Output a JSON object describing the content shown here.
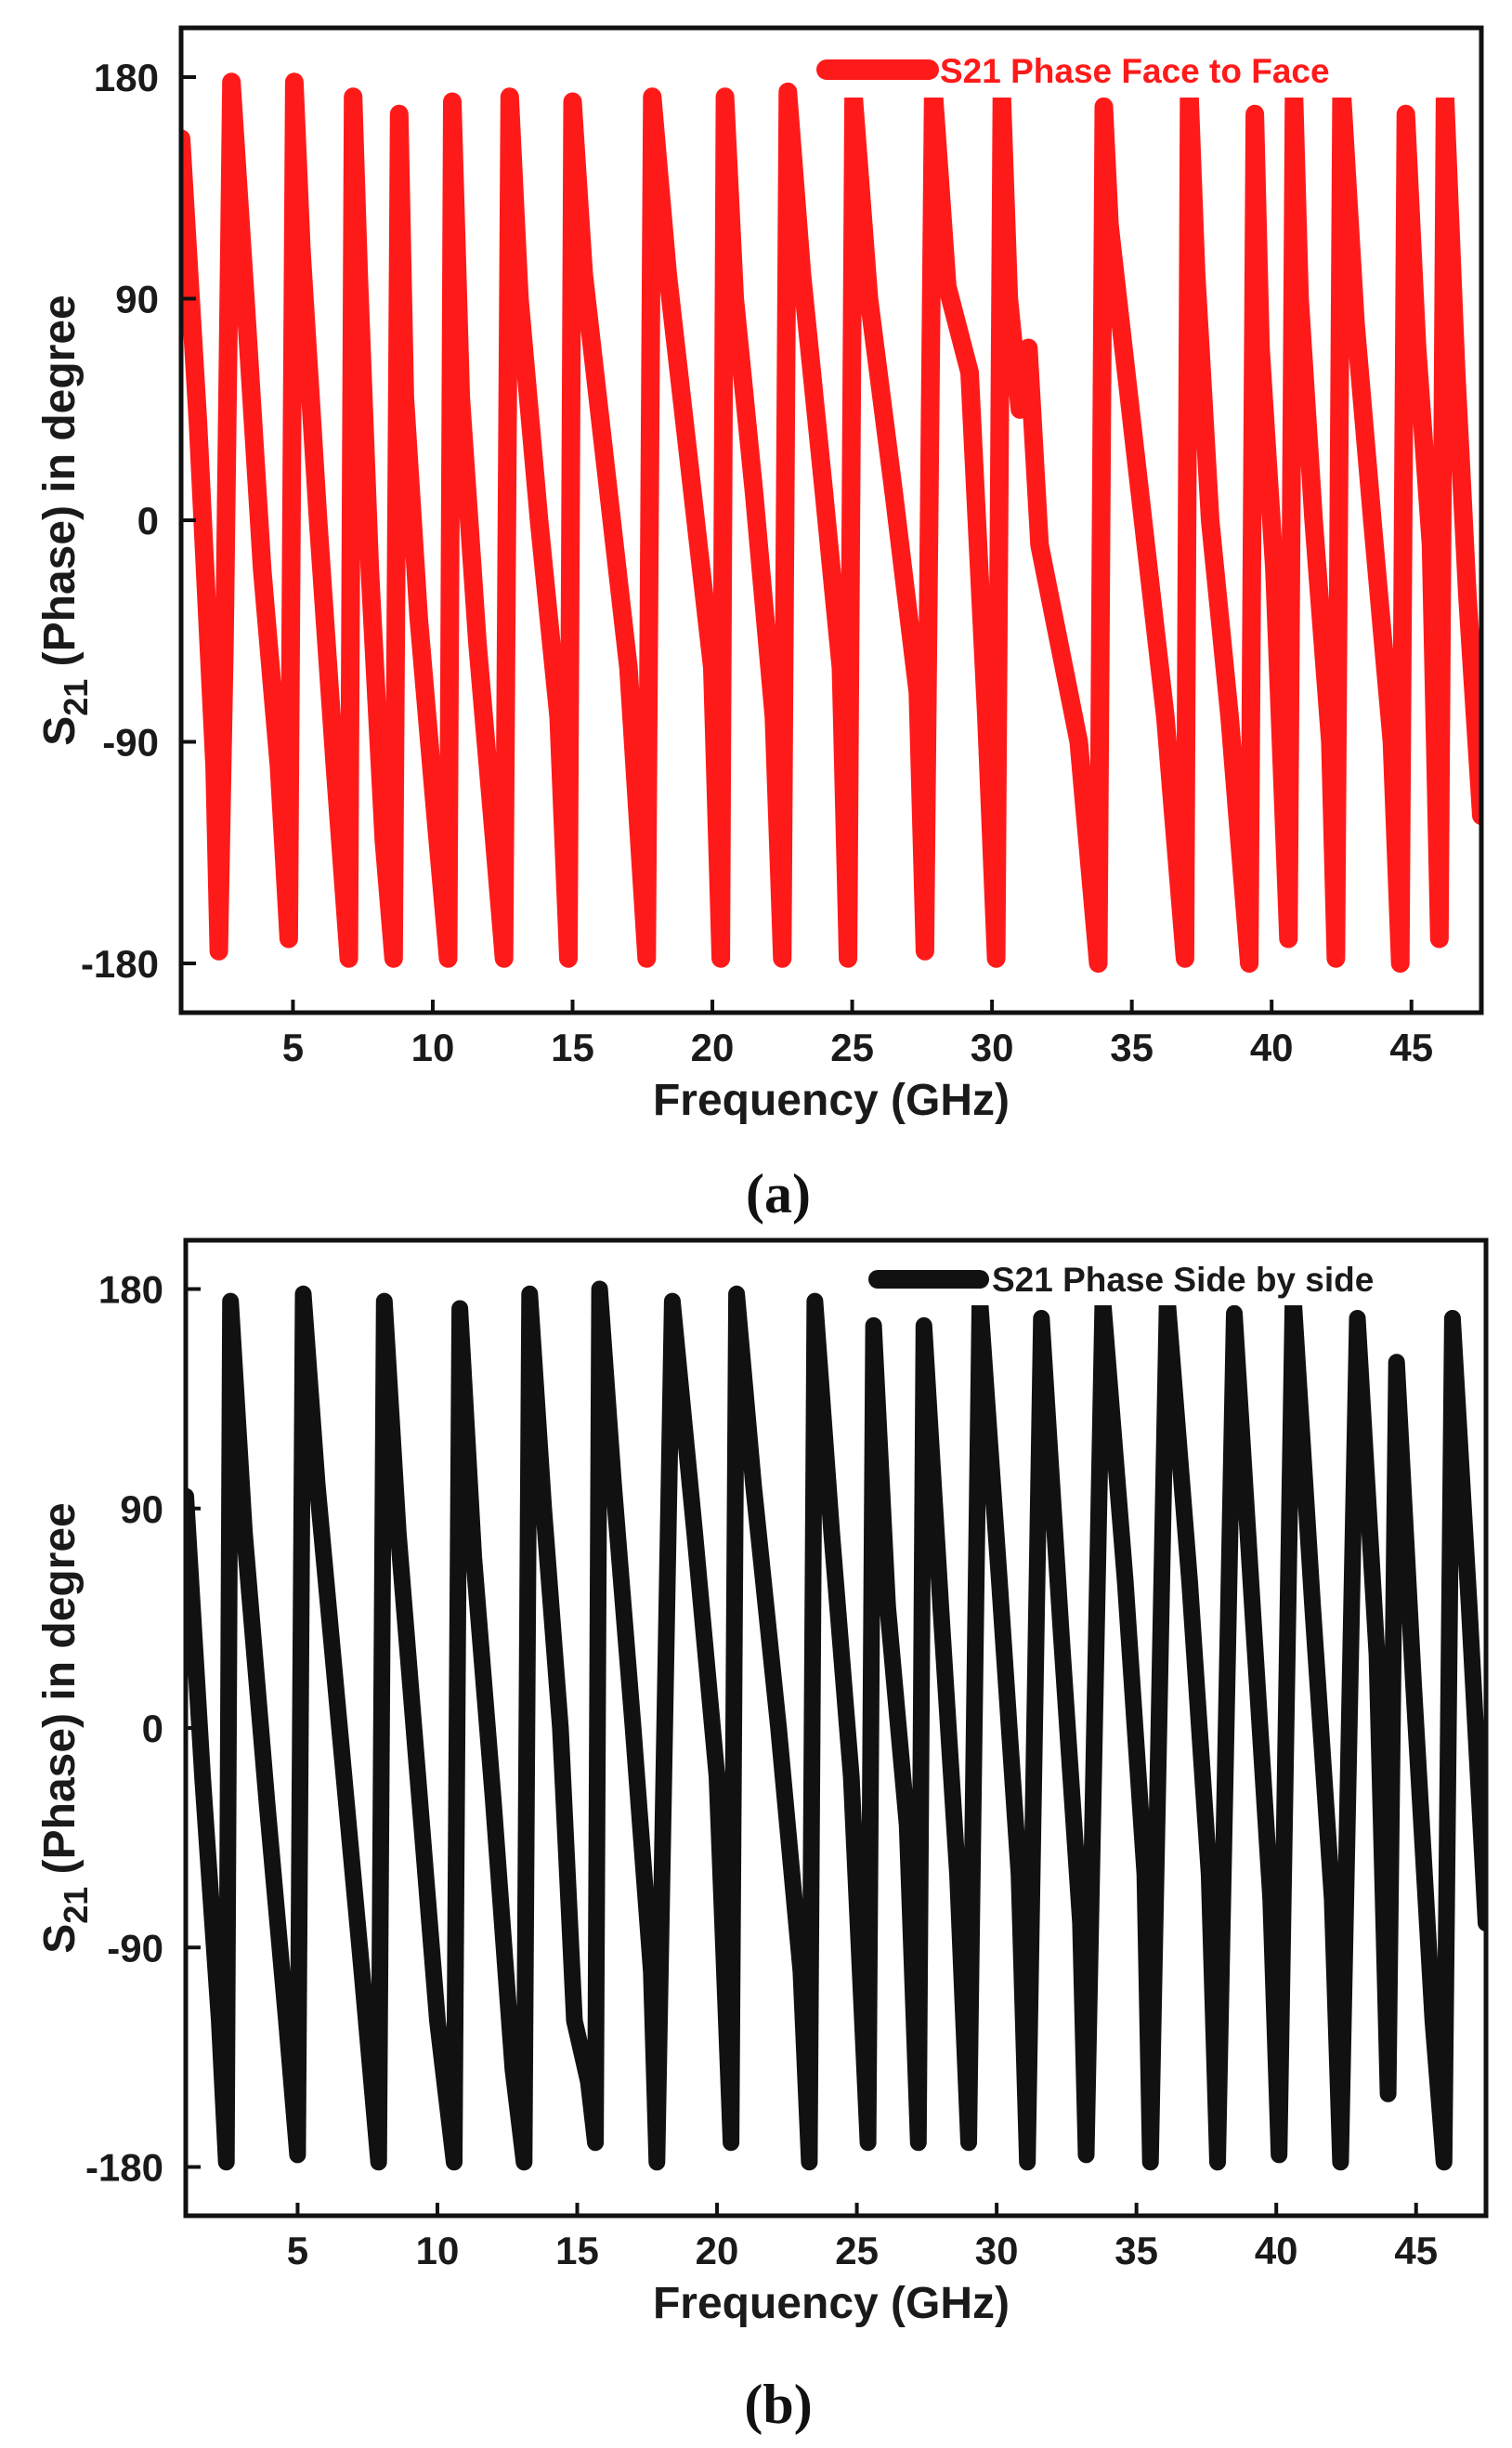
{
  "chart_data": [
    {
      "type": "line",
      "panel_label": "(a)",
      "panel_letter": "a",
      "xlabel": "Frequency (GHz)",
      "ylabel": "S21 (Phase) in degree",
      "ylabel_base": "S",
      "ylabel_sub": "21",
      "ylabel_rest": " (Phase) in degree",
      "xlim": [
        1,
        47.5
      ],
      "ylim": [
        -200,
        200
      ],
      "xticks": [
        5,
        10,
        15,
        20,
        25,
        30,
        35,
        40,
        45
      ],
      "yticks": [
        180,
        90,
        0,
        -90,
        -180
      ],
      "xtick_labels": [
        "5",
        "10",
        "15",
        "20",
        "25",
        "30",
        "35",
        "40",
        "45"
      ],
      "ytick_labels": [
        "180",
        "90",
        "0",
        "-90",
        "-180"
      ],
      "legend_position": "top-right",
      "series": [
        {
          "name": "S21 Phase Face to Face",
          "color": "#ff1a1a",
          "x": [
            1.0,
            1.6,
            2.2,
            2.35,
            2.55,
            2.8,
            3.3,
            3.9,
            4.5,
            4.85,
            5.05,
            5.3,
            5.9,
            6.5,
            7.0,
            7.15,
            7.35,
            7.75,
            8.25,
            8.6,
            8.8,
            9.0,
            9.5,
            10.1,
            10.55,
            10.7,
            11.0,
            11.6,
            12.2,
            12.55,
            12.75,
            13.1,
            13.8,
            14.5,
            14.85,
            15.0,
            15.4,
            16.2,
            17.0,
            17.65,
            17.85,
            18.4,
            19.2,
            20.0,
            20.3,
            20.45,
            20.8,
            21.5,
            22.2,
            22.5,
            22.7,
            23.2,
            24.0,
            24.6,
            24.85,
            25.05,
            25.6,
            26.5,
            27.35,
            27.6,
            27.9,
            28.4,
            29.2,
            29.8,
            30.15,
            30.35,
            30.6,
            31.0,
            31.3,
            31.7,
            32.4,
            33.1,
            33.8,
            34.0,
            34.2,
            34.6,
            35.4,
            36.2,
            36.9,
            37.05,
            37.3,
            37.8,
            38.5,
            39.2,
            39.4,
            39.6,
            40.1,
            40.6,
            40.8,
            41.0,
            41.5,
            42.1,
            42.3,
            42.5,
            43.0,
            43.6,
            44.3,
            44.6,
            44.8,
            45.2,
            45.7,
            46.0,
            46.2,
            46.6,
            47.0,
            47.5
          ],
          "y": [
            155,
            40,
            -100,
            -175,
            -50,
            178,
            90,
            -20,
            -100,
            -170,
            178,
            110,
            0,
            -100,
            -178,
            172,
            100,
            -20,
            -130,
            -178,
            165,
            50,
            -40,
            -120,
            -178,
            170,
            50,
            -50,
            -130,
            -178,
            172,
            90,
            0,
            -80,
            -178,
            170,
            100,
            20,
            -60,
            -178,
            172,
            100,
            20,
            -60,
            -178,
            172,
            90,
            10,
            -80,
            -178,
            174,
            100,
            10,
            -60,
            -178,
            172,
            90,
            10,
            -70,
            -175,
            176,
            95,
            60,
            -80,
            -178,
            172,
            90,
            45,
            70,
            -10,
            -50,
            -90,
            -180,
            168,
            120,
            80,
            0,
            -80,
            -178,
            176,
            100,
            0,
            -80,
            -180,
            165,
            70,
            -20,
            -170,
            172,
            90,
            0,
            -90,
            -178,
            176,
            80,
            0,
            -90,
            -180,
            165,
            70,
            -10,
            -170,
            172,
            60,
            -30,
            -120
          ]
        }
      ]
    },
    {
      "type": "line",
      "panel_label": "(b)",
      "panel_letter": "b",
      "xlabel": "Frequency (GHz)",
      "ylabel": "S21 (Phase) in degree",
      "ylabel_base": "S",
      "ylabel_sub": "21",
      "ylabel_rest": " (Phase) in degree",
      "xlim": [
        1,
        47.5
      ],
      "ylim": [
        -200,
        200
      ],
      "xticks": [
        5,
        10,
        15,
        20,
        25,
        30,
        35,
        40,
        45
      ],
      "yticks": [
        180,
        90,
        0,
        -90,
        -180
      ],
      "xtick_labels": [
        "5",
        "10",
        "15",
        "20",
        "25",
        "30",
        "35",
        "40",
        "45"
      ],
      "ytick_labels": [
        "180",
        "90",
        "0",
        "-90",
        "-180"
      ],
      "legend_position": "top-right",
      "series": [
        {
          "name": "S21 Phase Side by side",
          "color": "#111111",
          "x": [
            1.0,
            1.6,
            2.2,
            2.45,
            2.6,
            3.1,
            3.9,
            4.6,
            5.0,
            5.2,
            5.7,
            6.5,
            7.3,
            7.9,
            8.1,
            8.6,
            9.3,
            10.0,
            10.6,
            10.8,
            11.3,
            12.0,
            12.7,
            13.1,
            13.3,
            13.8,
            14.4,
            14.9,
            15.4,
            15.65,
            15.8,
            16.3,
            17.0,
            17.65,
            17.85,
            18.4,
            19.2,
            20.0,
            20.5,
            20.7,
            21.3,
            22.2,
            23.0,
            23.3,
            23.5,
            24.1,
            24.8,
            25.4,
            25.6,
            26.1,
            26.8,
            27.2,
            27.4,
            28.0,
            28.6,
            29.0,
            29.4,
            30.1,
            30.8,
            31.1,
            31.6,
            32.3,
            33.0,
            33.2,
            33.8,
            34.6,
            35.3,
            35.5,
            36.1,
            36.9,
            37.6,
            37.9,
            38.5,
            39.2,
            39.8,
            40.1,
            40.6,
            41.3,
            42.0,
            42.3,
            42.9,
            43.6,
            44.0,
            44.3,
            44.9,
            45.6,
            46.0,
            46.3,
            46.9,
            47.5
          ],
          "y": [
            95,
            -20,
            -120,
            -178,
            175,
            80,
            -30,
            -120,
            -175,
            178,
            100,
            0,
            -100,
            -178,
            175,
            80,
            -20,
            -120,
            -178,
            172,
            70,
            -30,
            -140,
            -178,
            178,
            90,
            0,
            -120,
            -145,
            -170,
            180,
            100,
            0,
            -100,
            -178,
            175,
            80,
            -20,
            -170,
            178,
            100,
            0,
            -100,
            -178,
            175,
            80,
            -20,
            -170,
            165,
            50,
            -40,
            -170,
            165,
            50,
            -60,
            -170,
            175,
            60,
            -60,
            -178,
            168,
            40,
            -80,
            -175,
            175,
            60,
            -60,
            -178,
            176,
            60,
            -60,
            -178,
            170,
            40,
            -70,
            -175,
            178,
            50,
            -70,
            -178,
            168,
            30,
            -150,
            150,
            20,
            -120,
            -178,
            168,
            50,
            -80
          ]
        }
      ]
    }
  ]
}
